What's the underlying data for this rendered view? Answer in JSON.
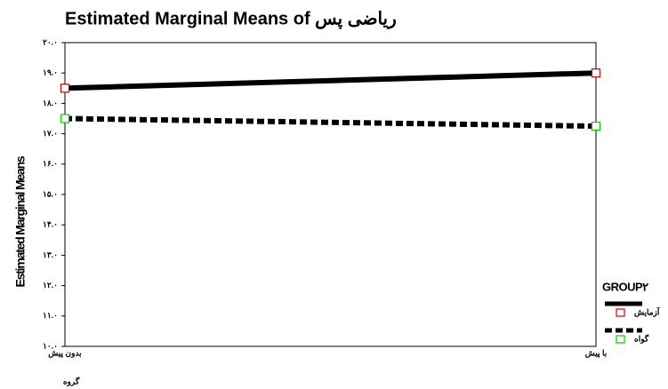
{
  "chart_data": {
    "type": "line",
    "title": "Estimated Marginal Means of ریاضی پس",
    "y_label": "Estimated Marginal Means",
    "x_label": "گروه",
    "categories": [
      "بدون پیش",
      "با پیش"
    ],
    "series": [
      {
        "name": "آزمایش",
        "color": "#000000",
        "marker_color": "#d00000",
        "line_style": "solid",
        "values": [
          18.5,
          19.0
        ]
      },
      {
        "name": "گواه",
        "color": "#000000",
        "marker_color": "#00cc00",
        "line_style": "dotted",
        "values": [
          17.5,
          17.25
        ]
      }
    ],
    "legend_title": "GROUP۲",
    "legend": "right",
    "ylim": [
      10,
      20
    ],
    "yticks": [
      {
        "value": 10,
        "label": "۱۰.۰"
      },
      {
        "value": 11,
        "label": "۱۱.۰"
      },
      {
        "value": 12,
        "label": "۱۲.۰"
      },
      {
        "value": 13,
        "label": "۱۳.۰"
      },
      {
        "value": 14,
        "label": "۱۴.۰"
      },
      {
        "value": 15,
        "label": "۱۵.۰"
      },
      {
        "value": 16,
        "label": "۱۶.۰"
      },
      {
        "value": 17,
        "label": "۱۷.۰"
      },
      {
        "value": 18,
        "label": "۱۸.۰"
      },
      {
        "value": 19,
        "label": "۱۹.۰"
      },
      {
        "value": 20,
        "label": "۲۰.۰"
      }
    ]
  }
}
